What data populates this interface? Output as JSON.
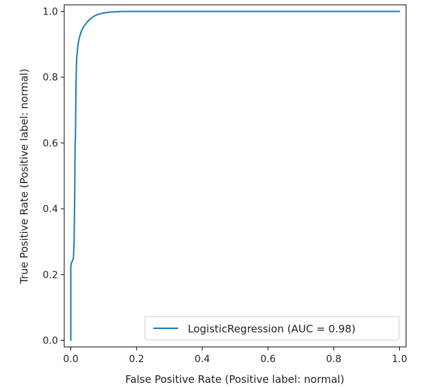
{
  "chart_data": {
    "type": "line",
    "title": "",
    "xlabel": "False Positive Rate (Positive label: normal)",
    "ylabel": "True Positive Rate (Positive label: normal)",
    "xlim": [
      -0.02,
      1.02
    ],
    "ylim": [
      -0.02,
      1.02
    ],
    "grid": false,
    "legend_position": "lower-right",
    "x_ticks": [
      "0.0",
      "0.2",
      "0.4",
      "0.6",
      "0.8",
      "1.0"
    ],
    "y_ticks": [
      "0.0",
      "0.2",
      "0.4",
      "0.6",
      "0.8",
      "1.0"
    ],
    "series": [
      {
        "name": "LogisticRegression (AUC = 0.98)",
        "color": "#1f77b4",
        "x": [
          0.0,
          0.0,
          0.0,
          0.002,
          0.004,
          0.008,
          0.01,
          0.012,
          0.013,
          0.014,
          0.015,
          0.016,
          0.017,
          0.018,
          0.02,
          0.022,
          0.026,
          0.032,
          0.04,
          0.05,
          0.06,
          0.07,
          0.08,
          0.09,
          0.1,
          0.11,
          0.12,
          0.14,
          0.16,
          0.2,
          0.3,
          0.5,
          0.7,
          1.0
        ],
        "y": [
          0.0,
          0.06,
          0.225,
          0.235,
          0.24,
          0.25,
          0.3,
          0.45,
          0.6,
          0.61,
          0.7,
          0.78,
          0.83,
          0.86,
          0.88,
          0.9,
          0.92,
          0.94,
          0.955,
          0.968,
          0.978,
          0.985,
          0.99,
          0.993,
          0.995,
          0.997,
          0.998,
          0.999,
          1.0,
          1.0,
          1.0,
          1.0,
          1.0,
          1.0
        ]
      }
    ]
  }
}
